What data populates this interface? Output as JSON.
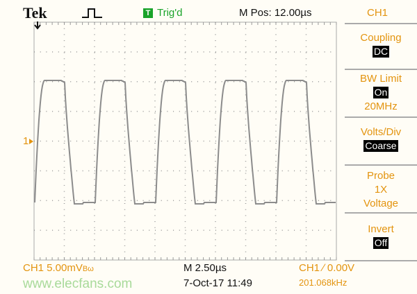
{
  "header": {
    "brand": "Tek",
    "trigger_icon": "pulse-icon",
    "trigger_badge": "T",
    "trigger_status": "Trig'd",
    "m_pos": "M Pos: 12.00µs",
    "channel": "CH1"
  },
  "menu": [
    {
      "label": "Coupling",
      "value": "DC"
    },
    {
      "label": "BW Limit",
      "value": "On",
      "extra": "20MHz"
    },
    {
      "label": "Volts/Div",
      "value": "Coarse"
    },
    {
      "label": "Probe",
      "line2": "1X",
      "line3": "Voltage"
    },
    {
      "label": "Invert",
      "value": "Off"
    }
  ],
  "footer": {
    "ch_scale": "CH1  5.00mV",
    "bw_symbol": "Bω",
    "timebase": "M 2.50µs",
    "datetime": "7-Oct-17 11:49",
    "trigger": "CH1 ∕ 0.00V",
    "frequency": "201.068kHz"
  },
  "marker": {
    "channel_marker": "1"
  },
  "watermark": "www.elecfans.com",
  "colors": {
    "accent": "#e3940f",
    "trace": "#8c8c8c",
    "trig": "#1aa32a"
  }
}
